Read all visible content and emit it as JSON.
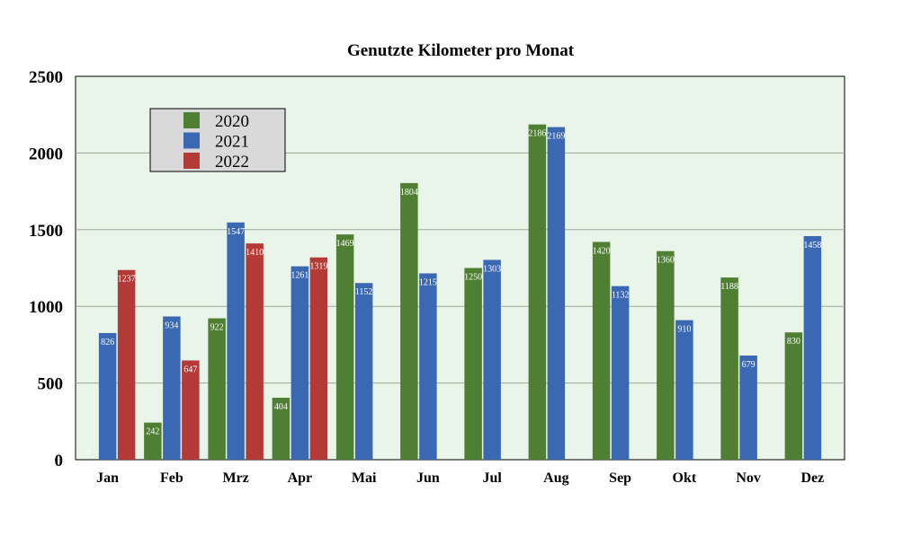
{
  "chart_data": {
    "type": "bar",
    "title": "Genutzte Kilometer pro Monat",
    "xlabel": "",
    "ylabel": "",
    "ylim": [
      0,
      2500
    ],
    "yticks": [
      0,
      500,
      1000,
      1500,
      2000,
      2500
    ],
    "grid": true,
    "legend_position": "top-left",
    "categories": [
      "Jan",
      "Feb",
      "Mrz",
      "Apr",
      "Mai",
      "Jun",
      "Jul",
      "Aug",
      "Sep",
      "Okt",
      "Nov",
      "Dez"
    ],
    "series": [
      {
        "name": "2020",
        "color": "#4f7f32",
        "values": [
          0,
          242,
          922,
          404,
          1469,
          1804,
          1250,
          2186,
          1420,
          1360,
          1188,
          830
        ],
        "labels": [
          "0",
          "242",
          "922",
          "404",
          "1469",
          "1804",
          "1250",
          "2186",
          "1420",
          "1360",
          "1188",
          "830"
        ]
      },
      {
        "name": "2021",
        "color": "#3b68b3",
        "values": [
          826,
          934,
          1547,
          1261,
          1152,
          1215,
          1303,
          2169,
          1132,
          910,
          679,
          1458
        ],
        "labels": [
          "826",
          "934",
          "1547",
          "1261",
          "1152",
          "1215",
          "1303",
          "2169",
          "1132",
          "910",
          "679",
          "1458"
        ]
      },
      {
        "name": "2022",
        "color": "#b33a36",
        "values": [
          1237,
          647,
          1410,
          1319,
          null,
          null,
          null,
          null,
          null,
          null,
          null,
          null
        ],
        "labels": [
          "1237",
          "647",
          "1410",
          "1319",
          "",
          "",
          "",
          "",
          "",
          "",
          "",
          ""
        ]
      }
    ]
  }
}
